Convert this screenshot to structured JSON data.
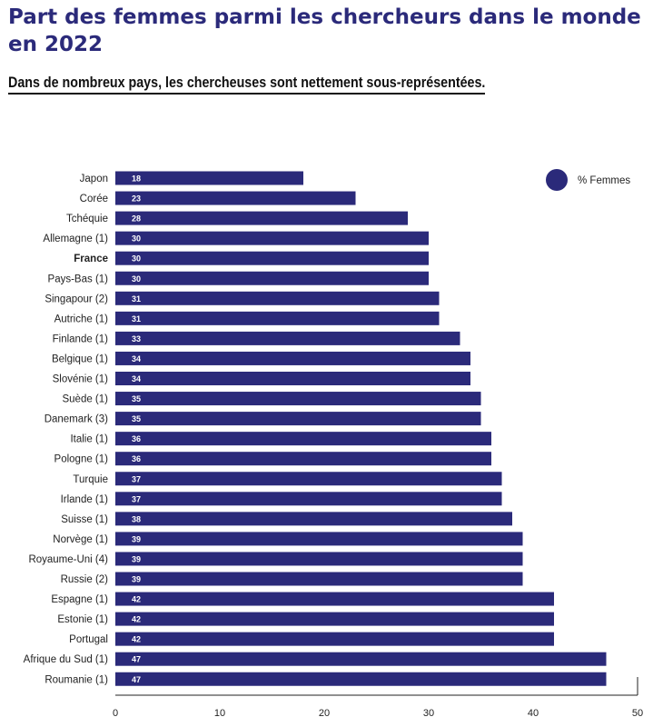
{
  "header": {
    "title": "Part des femmes parmi les chercheurs dans le monde en 2022",
    "subtitle": "Dans de nombreux pays, les chercheuses sont nettement sous-représentées."
  },
  "chart_data": {
    "type": "bar",
    "orientation": "horizontal",
    "categories": [
      "Japon",
      "Corée",
      "Tchéquie",
      "Allemagne (1)",
      "France",
      "Pays-Bas (1)",
      "Singapour (2)",
      "Autriche (1)",
      "Finlande (1)",
      "Belgique (1)",
      "Slovénie (1)",
      "Suède (1)",
      "Danemark (3)",
      "Italie (1)",
      "Pologne (1)",
      "Turquie",
      "Irlande (1)",
      "Suisse (1)",
      "Norvège (1)",
      "Royaume-Uni (4)",
      "Russie (2)",
      "Espagne (1)",
      "Estonie (1)",
      "Portugal",
      "Afrique du Sud (1)",
      "Roumanie (1)"
    ],
    "series": [
      {
        "name": "% Femmes",
        "values": [
          18,
          23,
          28,
          30,
          30,
          30,
          31,
          31,
          33,
          34,
          34,
          35,
          35,
          36,
          36,
          37,
          37,
          38,
          39,
          39,
          39,
          42,
          42,
          42,
          47,
          47
        ]
      }
    ],
    "highlight_category": "France",
    "xlim": [
      0,
      50
    ],
    "xticks": [
      0,
      10,
      20,
      30,
      40,
      50
    ],
    "grid": false,
    "legend_position": "top-right",
    "bar_color": "#2b2a7a",
    "value_label_color": "#ffffff"
  }
}
